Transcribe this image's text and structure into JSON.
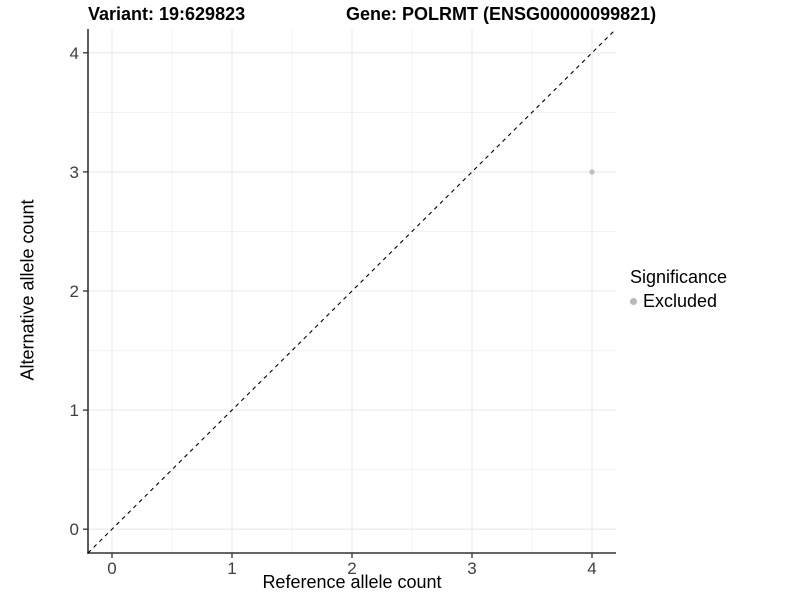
{
  "chart_data": {
    "type": "scatter",
    "title_left": "Variant: 19:629823",
    "title_right": "Gene: POLRMT (ENSG00000099821)",
    "xlabel": "Reference allele count",
    "ylabel": "Alternative allele count",
    "xlim": [
      -0.2,
      4.2
    ],
    "ylim": [
      -0.2,
      4.2
    ],
    "x_ticks": [
      0,
      1,
      2,
      3,
      4
    ],
    "y_ticks": [
      0,
      1,
      2,
      3,
      4
    ],
    "x_minor_ticks": [
      0.5,
      1.5,
      2.5,
      3.5
    ],
    "y_minor_ticks": [
      0.5,
      1.5,
      2.5,
      3.5
    ],
    "grid": "major+minor",
    "legend_position": "right",
    "series": [
      {
        "name": "Excluded",
        "marker": "circle",
        "color": "#bdbdbd",
        "point_radius": 2.6,
        "points": [
          {
            "x": 4,
            "y": 3
          }
        ]
      }
    ],
    "reference_line": {
      "kind": "identity y=x",
      "style": "dashed",
      "color": "#000000",
      "x": [
        -0.2,
        4.2
      ],
      "y": [
        -0.2,
        4.2
      ]
    },
    "legend": {
      "title": "Significance",
      "entries": [
        {
          "label": "Excluded",
          "color": "#bdbdbd"
        }
      ]
    }
  },
  "colors": {
    "background": "#ffffff",
    "grid_major": "#e9e9e9",
    "grid_minor": "#f3f3f3",
    "axis_line": "#333333",
    "tick_mark": "#333333",
    "tick_label": "#404040",
    "point": "#bdbdbd",
    "reference_line": "#000000"
  }
}
